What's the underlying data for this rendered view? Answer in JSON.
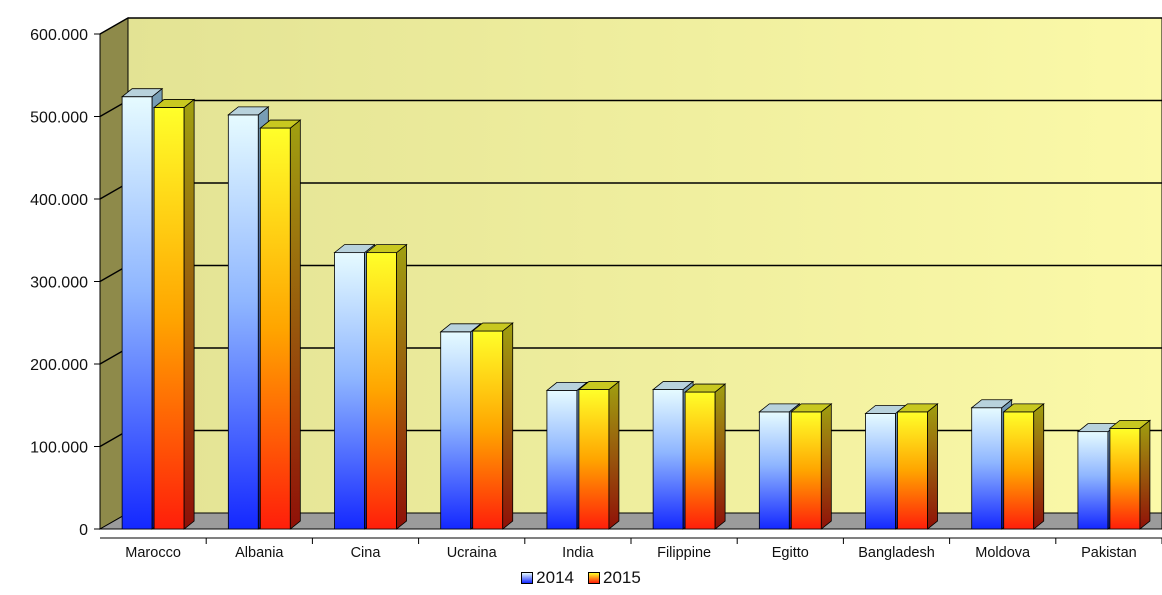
{
  "chart_data": {
    "type": "bar",
    "categories": [
      "Marocco",
      "Albania",
      "Cina",
      "Ucraina",
      "India",
      "Filippine",
      "Egitto",
      "Bangladesh",
      "Moldova",
      "Pakistan"
    ],
    "series": [
      {
        "name": "2014",
        "values": [
          524000,
          502000,
          335000,
          239000,
          168000,
          169000,
          142000,
          140000,
          147000,
          118000
        ]
      },
      {
        "name": "2015",
        "values": [
          511000,
          486000,
          335000,
          240000,
          169000,
          166000,
          142000,
          142000,
          142000,
          122000
        ]
      }
    ],
    "yticks": [
      "0",
      "100.000",
      "200.000",
      "300.000",
      "400.000",
      "500.000",
      "600.000"
    ],
    "ylim": [
      0,
      600000
    ],
    "grid": true,
    "legend_position": "bottom-center",
    "colors": {
      "wall_left": "#ecec9c",
      "wall_right": "#f7f5a4",
      "side_wall": "#8e8a4a",
      "floor": "#9b9b9b",
      "s2014_top": "#dff7ff",
      "s2014_bottom": "#1a2dff",
      "s2015_top": "#ffff30",
      "s2015_bottom": "#ff2a0a"
    }
  }
}
